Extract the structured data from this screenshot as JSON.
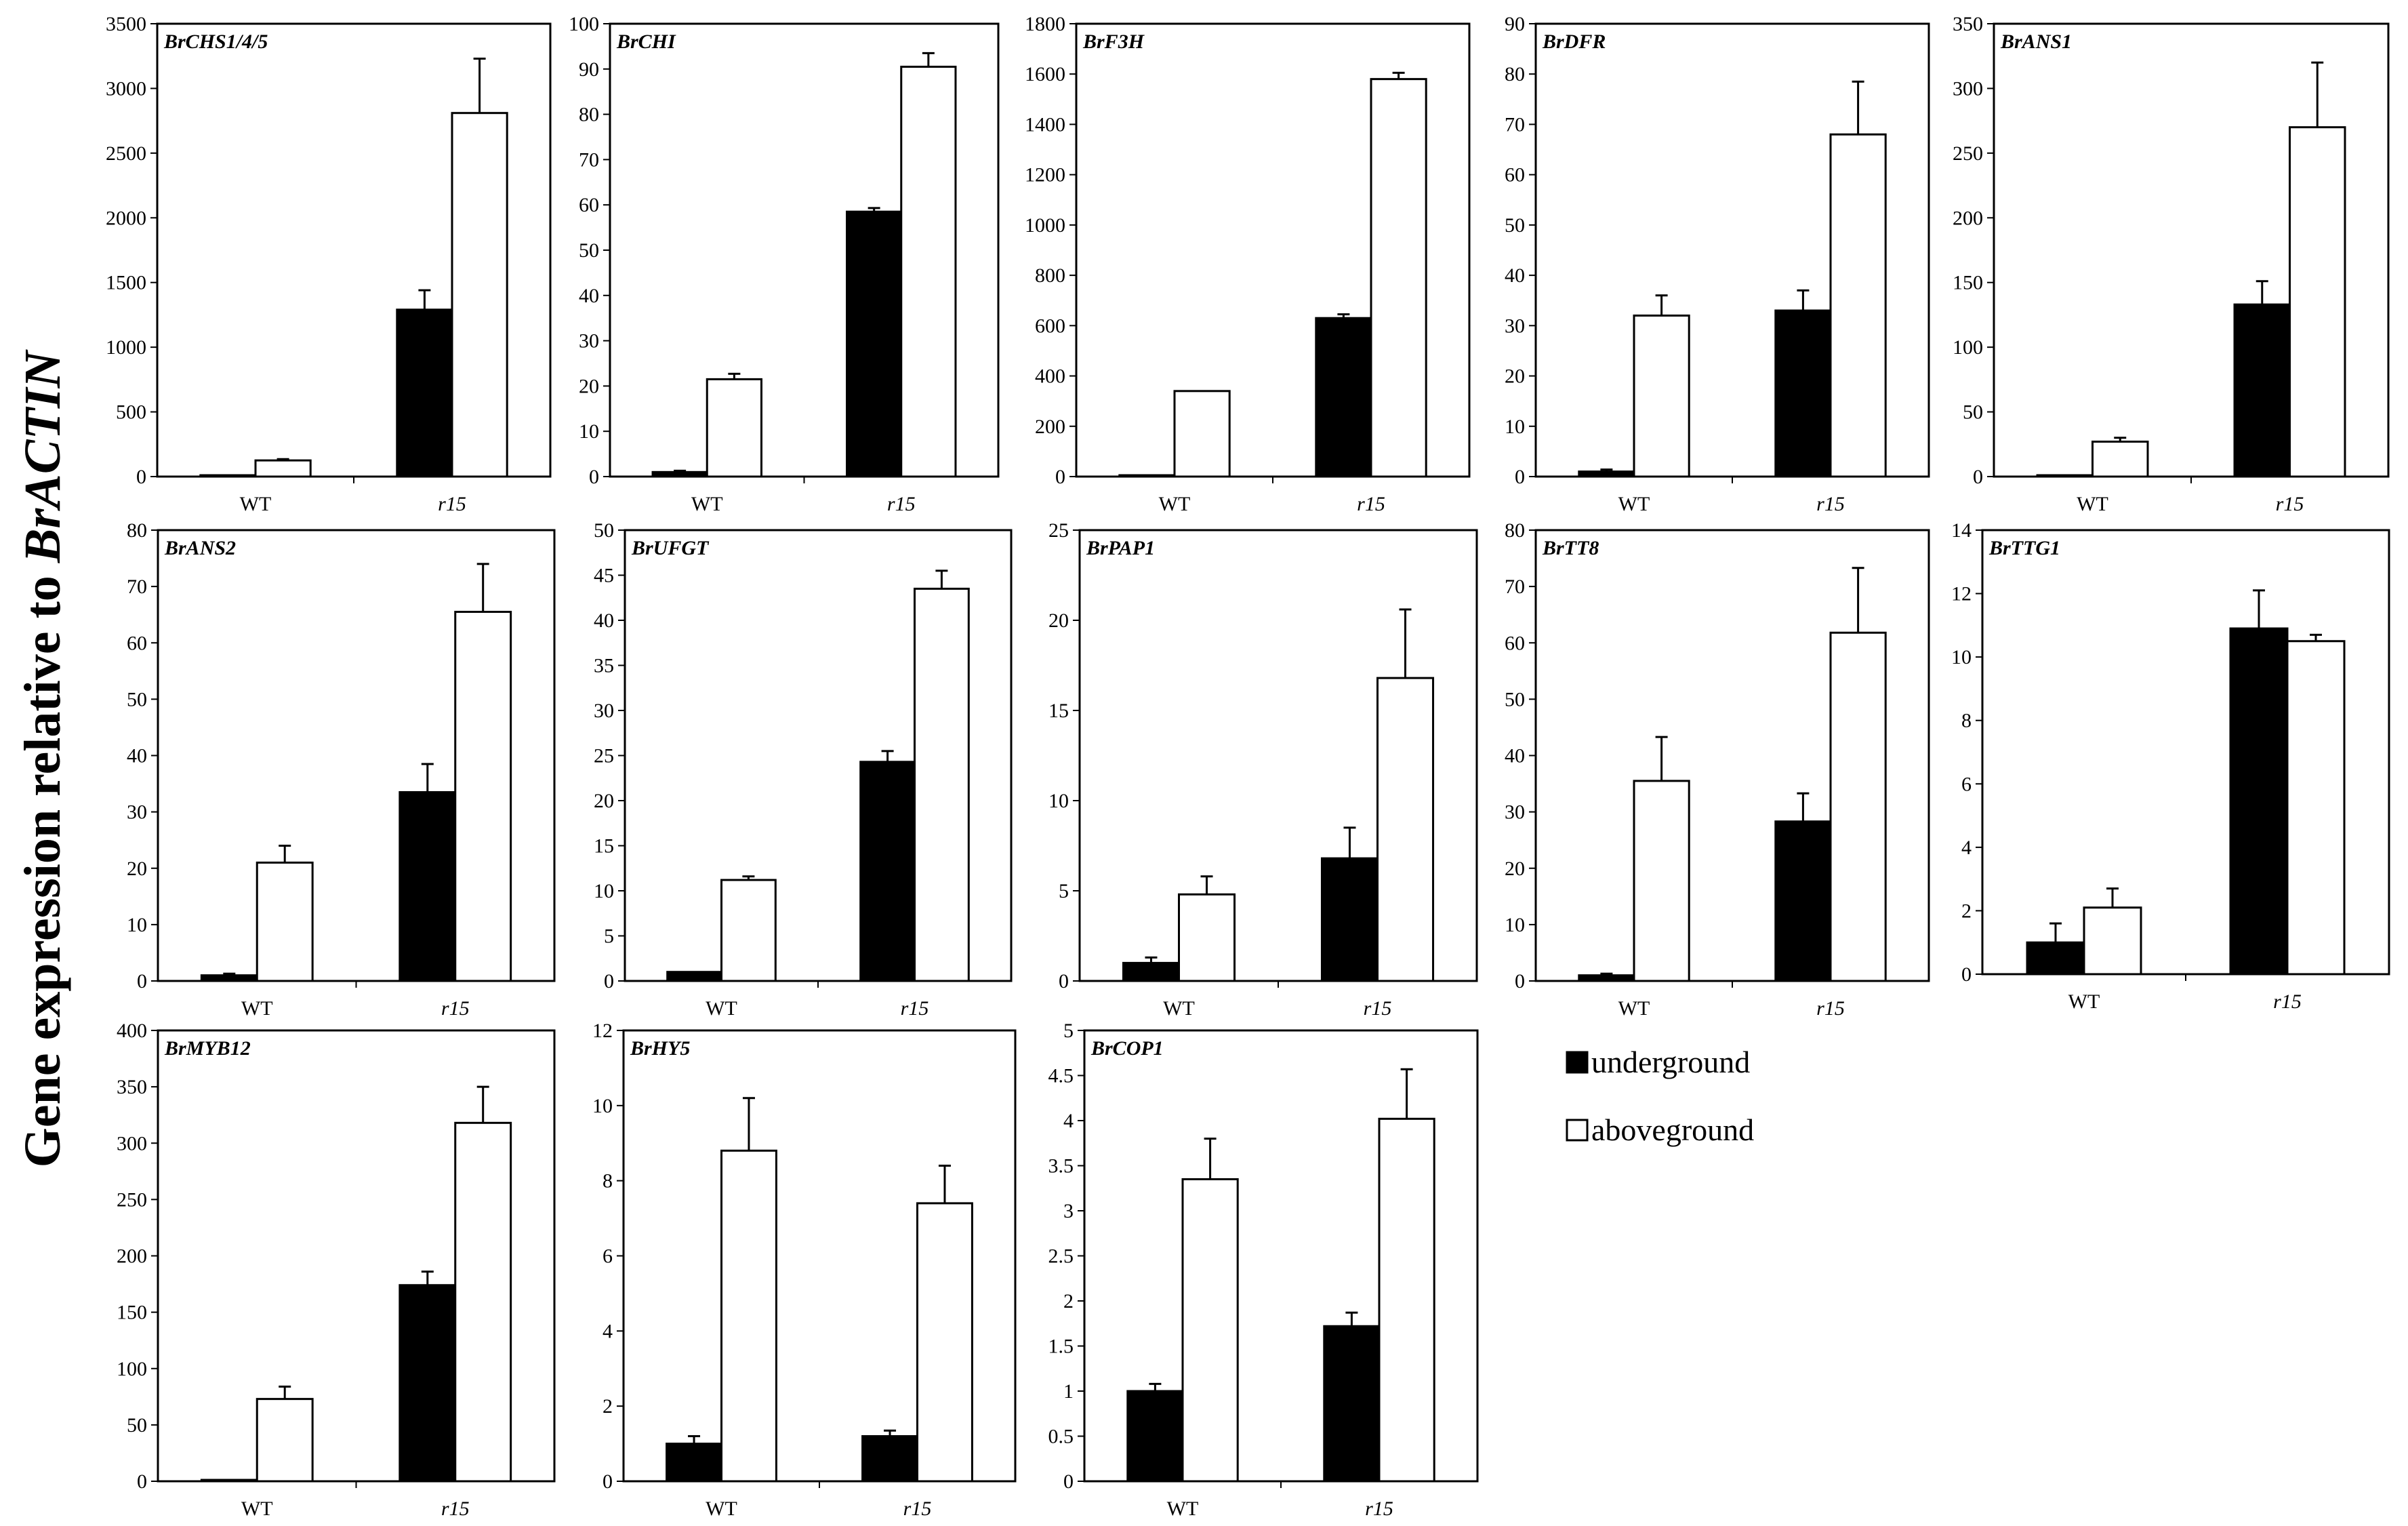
{
  "figure": {
    "ylabel_prefix": "Gene expression relative to ",
    "ylabel_gene": "BrACTIN",
    "legend": [
      {
        "label": "underground",
        "color": "#000000"
      },
      {
        "label": "aboveground",
        "color": "#ffffff"
      }
    ]
  },
  "chart_data": [
    {
      "type": "bar",
      "title": "BrCHS1/4/5",
      "categories": [
        "WT",
        "r15"
      ],
      "ylim": [
        0,
        3500
      ],
      "yticks": [
        0,
        500,
        1000,
        1500,
        2000,
        2500,
        3000,
        3500
      ],
      "series": [
        {
          "name": "underground",
          "values": [
            5,
            1290
          ],
          "errors": [
            0,
            150
          ]
        },
        {
          "name": "aboveground",
          "values": [
            125,
            2810
          ],
          "errors": [
            10,
            420
          ]
        }
      ]
    },
    {
      "type": "bar",
      "title": "BrCHI",
      "categories": [
        "WT",
        "r15"
      ],
      "ylim": [
        0,
        100
      ],
      "yticks": [
        0,
        10,
        20,
        30,
        40,
        50,
        60,
        70,
        80,
        90,
        100
      ],
      "series": [
        {
          "name": "underground",
          "values": [
            1,
            58.5
          ],
          "errors": [
            0.3,
            0.8
          ]
        },
        {
          "name": "aboveground",
          "values": [
            21.5,
            90.5
          ],
          "errors": [
            1.2,
            3
          ]
        }
      ]
    },
    {
      "type": "bar",
      "title": "BrF3H",
      "categories": [
        "WT",
        "r15"
      ],
      "ylim": [
        0,
        1800
      ],
      "yticks": [
        0,
        200,
        400,
        600,
        800,
        1000,
        1200,
        1400,
        1600,
        1800
      ],
      "series": [
        {
          "name": "underground",
          "values": [
            2,
            630
          ],
          "errors": [
            0,
            15
          ]
        },
        {
          "name": "aboveground",
          "values": [
            340,
            1580
          ],
          "errors": [
            0,
            25
          ]
        }
      ]
    },
    {
      "type": "bar",
      "title": "BrDFR",
      "categories": [
        "WT",
        "r15"
      ],
      "ylim": [
        0,
        90
      ],
      "yticks": [
        0,
        10,
        20,
        30,
        40,
        50,
        60,
        70,
        80,
        90
      ],
      "series": [
        {
          "name": "underground",
          "values": [
            1,
            33
          ],
          "errors": [
            0.4,
            4
          ]
        },
        {
          "name": "aboveground",
          "values": [
            32,
            68
          ],
          "errors": [
            4,
            10.5
          ]
        }
      ]
    },
    {
      "type": "bar",
      "title": "BrANS1",
      "categories": [
        "WT",
        "r15"
      ],
      "ylim": [
        0,
        350
      ],
      "yticks": [
        0,
        50,
        100,
        150,
        200,
        250,
        300,
        350
      ],
      "series": [
        {
          "name": "underground",
          "values": [
            1,
            133
          ],
          "errors": [
            0,
            18
          ]
        },
        {
          "name": "aboveground",
          "values": [
            27,
            270
          ],
          "errors": [
            3,
            50
          ]
        }
      ]
    },
    {
      "type": "bar",
      "title": "BrANS2",
      "categories": [
        "WT",
        "r15"
      ],
      "ylim": [
        0,
        80
      ],
      "yticks": [
        0,
        10,
        20,
        30,
        40,
        50,
        60,
        70,
        80
      ],
      "series": [
        {
          "name": "underground",
          "values": [
            1,
            33.5
          ],
          "errors": [
            0.3,
            5
          ]
        },
        {
          "name": "aboveground",
          "values": [
            21,
            65.5
          ],
          "errors": [
            3,
            8.5
          ]
        }
      ]
    },
    {
      "type": "bar",
      "title": "BrUFGT",
      "categories": [
        "WT",
        "r15"
      ],
      "ylim": [
        0,
        50
      ],
      "yticks": [
        0,
        5,
        10,
        15,
        20,
        25,
        30,
        35,
        40,
        45,
        50
      ],
      "series": [
        {
          "name": "underground",
          "values": [
            1,
            24.3
          ],
          "errors": [
            0,
            1.2
          ]
        },
        {
          "name": "aboveground",
          "values": [
            11.2,
            43.5
          ],
          "errors": [
            0.4,
            2
          ]
        }
      ]
    },
    {
      "type": "bar",
      "title": "BrPAP1",
      "categories": [
        "WT",
        "r15"
      ],
      "ylim": [
        0,
        25
      ],
      "yticks": [
        0,
        5,
        10,
        15,
        20,
        25
      ],
      "series": [
        {
          "name": "underground",
          "values": [
            1,
            6.8
          ],
          "errors": [
            0.3,
            1.7
          ]
        },
        {
          "name": "aboveground",
          "values": [
            4.8,
            16.8
          ],
          "errors": [
            1,
            3.8
          ]
        }
      ]
    },
    {
      "type": "bar",
      "title": "BrTT8",
      "categories": [
        "WT",
        "r15"
      ],
      "ylim": [
        0,
        80
      ],
      "yticks": [
        0,
        10,
        20,
        30,
        40,
        50,
        60,
        70,
        80
      ],
      "series": [
        {
          "name": "underground",
          "values": [
            1,
            28.3
          ],
          "errors": [
            0.3,
            5
          ]
        },
        {
          "name": "aboveground",
          "values": [
            35.5,
            61.8
          ],
          "errors": [
            7.8,
            11.5
          ]
        }
      ]
    },
    {
      "type": "bar",
      "title": "BrTTG1",
      "categories": [
        "WT",
        "r15"
      ],
      "ylim": [
        0,
        14
      ],
      "yticks": [
        0,
        2,
        4,
        6,
        8,
        10,
        12,
        14
      ],
      "series": [
        {
          "name": "underground",
          "values": [
            1,
            10.9
          ],
          "errors": [
            0.6,
            1.2
          ]
        },
        {
          "name": "aboveground",
          "values": [
            2.1,
            10.5
          ],
          "errors": [
            0.6,
            0.2
          ]
        }
      ]
    },
    {
      "type": "bar",
      "title": "BrMYB12",
      "categories": [
        "WT",
        "r15"
      ],
      "ylim": [
        0,
        400
      ],
      "yticks": [
        0,
        50,
        100,
        150,
        200,
        250,
        300,
        350,
        400
      ],
      "series": [
        {
          "name": "underground",
          "values": [
            1,
            174
          ],
          "errors": [
            0,
            12
          ]
        },
        {
          "name": "aboveground",
          "values": [
            73,
            318
          ],
          "errors": [
            11,
            32
          ]
        }
      ]
    },
    {
      "type": "bar",
      "title": "BrHY5",
      "categories": [
        "WT",
        "r15"
      ],
      "ylim": [
        0,
        12
      ],
      "yticks": [
        0,
        2,
        4,
        6,
        8,
        10,
        12
      ],
      "series": [
        {
          "name": "underground",
          "values": [
            1,
            1.2
          ],
          "errors": [
            0.2,
            0.15
          ]
        },
        {
          "name": "aboveground",
          "values": [
            8.8,
            7.4
          ],
          "errors": [
            1.4,
            1
          ]
        }
      ]
    },
    {
      "type": "bar",
      "title": "BrCOP1",
      "categories": [
        "WT",
        "r15"
      ],
      "ylim": [
        0,
        5
      ],
      "yticks": [
        0,
        0.5,
        1,
        1.5,
        2,
        2.5,
        3,
        3.5,
        4,
        4.5,
        5
      ],
      "series": [
        {
          "name": "underground",
          "values": [
            1,
            1.72
          ],
          "errors": [
            0.08,
            0.15
          ]
        },
        {
          "name": "aboveground",
          "values": [
            3.35,
            4.02
          ],
          "errors": [
            0.45,
            0.55
          ]
        }
      ]
    }
  ]
}
